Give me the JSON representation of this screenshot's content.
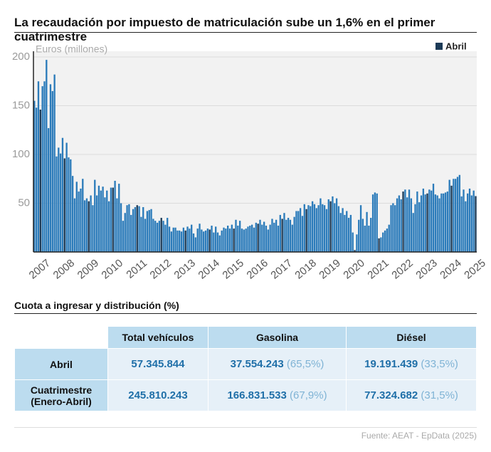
{
  "chart_data": {
    "type": "bar",
    "title": "La recaudación por impuesto de matriculación sube un 1,6% en el primer cuatrimestre",
    "y_label": "Euros (millones)",
    "ylim": [
      0,
      200
    ],
    "yticks": [
      50,
      100,
      150,
      200
    ],
    "grid": true,
    "legend": "top-right",
    "color": "#2b7bba",
    "categories": [
      "2007",
      null,
      null,
      null,
      null,
      null,
      null,
      null,
      null,
      null,
      null,
      null,
      "2008",
      null,
      null,
      null,
      null,
      null,
      null,
      null,
      null,
      null,
      null,
      null,
      "2009",
      null,
      null,
      null,
      null,
      null,
      null,
      null,
      null,
      null,
      null,
      null,
      "2010",
      null,
      null,
      null,
      null,
      null,
      null,
      null,
      null,
      null,
      null,
      null,
      "2011",
      null,
      null,
      null,
      null,
      null,
      null,
      null,
      null,
      null,
      null,
      null,
      "2012",
      null,
      null,
      null,
      null,
      null,
      null,
      null,
      null,
      null,
      null,
      null,
      "2013",
      null,
      null,
      null,
      null,
      null,
      null,
      null,
      null,
      null,
      null,
      null,
      "2014",
      null,
      null,
      null,
      null,
      null,
      null,
      null,
      null,
      null,
      null,
      null,
      "2015",
      null,
      null,
      null,
      null,
      null,
      null,
      null,
      null,
      null,
      null,
      null,
      "2016",
      null,
      null,
      null,
      null,
      null,
      null,
      null,
      null,
      null,
      null,
      null,
      "2017",
      null,
      null,
      null,
      null,
      null,
      null,
      null,
      null,
      null,
      null,
      null,
      "2018",
      null,
      null,
      null,
      null,
      null,
      null,
      null,
      null,
      null,
      null,
      null,
      "2019",
      null,
      null,
      null,
      null,
      null,
      null,
      null,
      null,
      null,
      null,
      null,
      "2020",
      null,
      null,
      null,
      null,
      null,
      null,
      null,
      null,
      null,
      null,
      null,
      "2021",
      null,
      null,
      null,
      null,
      null,
      null,
      null,
      null,
      null,
      null,
      null,
      "2022",
      null,
      null,
      null,
      null,
      null,
      null,
      null,
      null,
      null,
      null,
      null,
      "2023",
      null,
      null,
      null,
      null,
      null,
      null,
      null,
      null,
      null,
      null,
      null,
      "2024",
      null,
      null,
      null,
      null,
      null,
      null,
      null,
      null,
      null,
      null,
      null,
      "2025",
      null,
      null,
      null
    ],
    "values": [
      155,
      148,
      175,
      null,
      170,
      175,
      197,
      127,
      172,
      165,
      182,
      98,
      107,
      101,
      117,
      null,
      112,
      97,
      95,
      78,
      55,
      72,
      62,
      65,
      75,
      53,
      55,
      null,
      58,
      48,
      74,
      58,
      68,
      63,
      67,
      56,
      63,
      52,
      66,
      null,
      73,
      55,
      70,
      50,
      32,
      40,
      48,
      49,
      38,
      44,
      46,
      null,
      47,
      36,
      46,
      34,
      42,
      43,
      44,
      34,
      32,
      30,
      32,
      null,
      32,
      28,
      35,
      26,
      21,
      25,
      25,
      22,
      22,
      21,
      25,
      null,
      26,
      24,
      28,
      19,
      15,
      24,
      29,
      23,
      21,
      22,
      24,
      null,
      27,
      20,
      26,
      20,
      17,
      22,
      25,
      24,
      27,
      24,
      28,
      null,
      33,
      27,
      32,
      24,
      23,
      24,
      26,
      27,
      28,
      25,
      30,
      null,
      33,
      28,
      31,
      27,
      23,
      28,
      34,
      30,
      33,
      27,
      38,
      null,
      40,
      33,
      35,
      33,
      28,
      36,
      42,
      42,
      45,
      37,
      49,
      null,
      48,
      47,
      52,
      49,
      45,
      48,
      55,
      49,
      48,
      44,
      54,
      null,
      57,
      50,
      55,
      47,
      40,
      45,
      38,
      42,
      35,
      38,
      20,
      null,
      18,
      33,
      48,
      34,
      27,
      41,
      27,
      35,
      59,
      61,
      60,
      null,
      15,
      20,
      22,
      24,
      28,
      48,
      50,
      48,
      55,
      58,
      54,
      null,
      64,
      56,
      64,
      55,
      40,
      49,
      62,
      51,
      58,
      65,
      59,
      null,
      64,
      63,
      70,
      59,
      58,
      55,
      60,
      60,
      61,
      62,
      74,
      null,
      75,
      75,
      77,
      79,
      57,
      64,
      52,
      60,
      65,
      58,
      63,
      null
    ],
    "series": [
      {
        "name": "Abril",
        "color": "#1b3a57",
        "values": [
          null,
          null,
          null,
          146,
          null,
          null,
          null,
          null,
          null,
          null,
          null,
          null,
          null,
          null,
          null,
          96,
          null,
          null,
          null,
          null,
          null,
          null,
          null,
          null,
          null,
          null,
          null,
          52,
          null,
          null,
          null,
          null,
          null,
          null,
          null,
          null,
          null,
          null,
          null,
          66,
          null,
          null,
          null,
          null,
          null,
          null,
          null,
          null,
          null,
          null,
          null,
          48,
          null,
          null,
          null,
          null,
          null,
          null,
          null,
          null,
          null,
          null,
          null,
          35,
          null,
          null,
          null,
          null,
          null,
          null,
          null,
          null,
          null,
          null,
          null,
          22,
          null,
          null,
          null,
          null,
          null,
          null,
          null,
          null,
          null,
          null,
          null,
          23,
          null,
          null,
          null,
          null,
          null,
          null,
          null,
          null,
          null,
          null,
          null,
          24,
          null,
          null,
          null,
          null,
          null,
          null,
          null,
          null,
          null,
          null,
          null,
          29,
          null,
          null,
          null,
          null,
          null,
          null,
          null,
          null,
          null,
          null,
          null,
          34,
          null,
          null,
          null,
          null,
          null,
          null,
          null,
          null,
          null,
          null,
          null,
          44,
          null,
          null,
          null,
          null,
          null,
          null,
          null,
          null,
          null,
          null,
          null,
          52,
          null,
          null,
          null,
          null,
          null,
          null,
          null,
          null,
          null,
          null,
          null,
          2,
          null,
          null,
          null,
          null,
          null,
          null,
          null,
          null,
          null,
          null,
          null,
          14,
          null,
          null,
          null,
          null,
          null,
          null,
          null,
          null,
          null,
          null,
          null,
          62,
          null,
          null,
          null,
          null,
          null,
          null,
          null,
          null,
          null,
          null,
          null,
          60,
          null,
          null,
          null,
          null,
          null,
          null,
          null,
          null,
          null,
          null,
          null,
          68,
          null,
          null,
          null,
          null,
          null,
          null,
          null,
          null,
          null,
          null,
          null,
          57.3
        ]
      }
    ]
  },
  "table": {
    "title": "Cuota a ingresar y distribución (%)",
    "columns": [
      "Total vehículos",
      "Gasolina",
      "Diésel"
    ],
    "rows": [
      [
        "Abril",
        "57.345.844",
        "37.554.243",
        "(65,5%)",
        "19.191.439",
        "(33,5%)"
      ],
      [
        "Cuatrimestre\n(Enero-Abril)",
        "245.810.243",
        "166.831.533",
        "(67,9%)",
        "77.324.682",
        "(31,5%)"
      ]
    ]
  },
  "source": "Fuente: AEAT - EpData (2025)"
}
